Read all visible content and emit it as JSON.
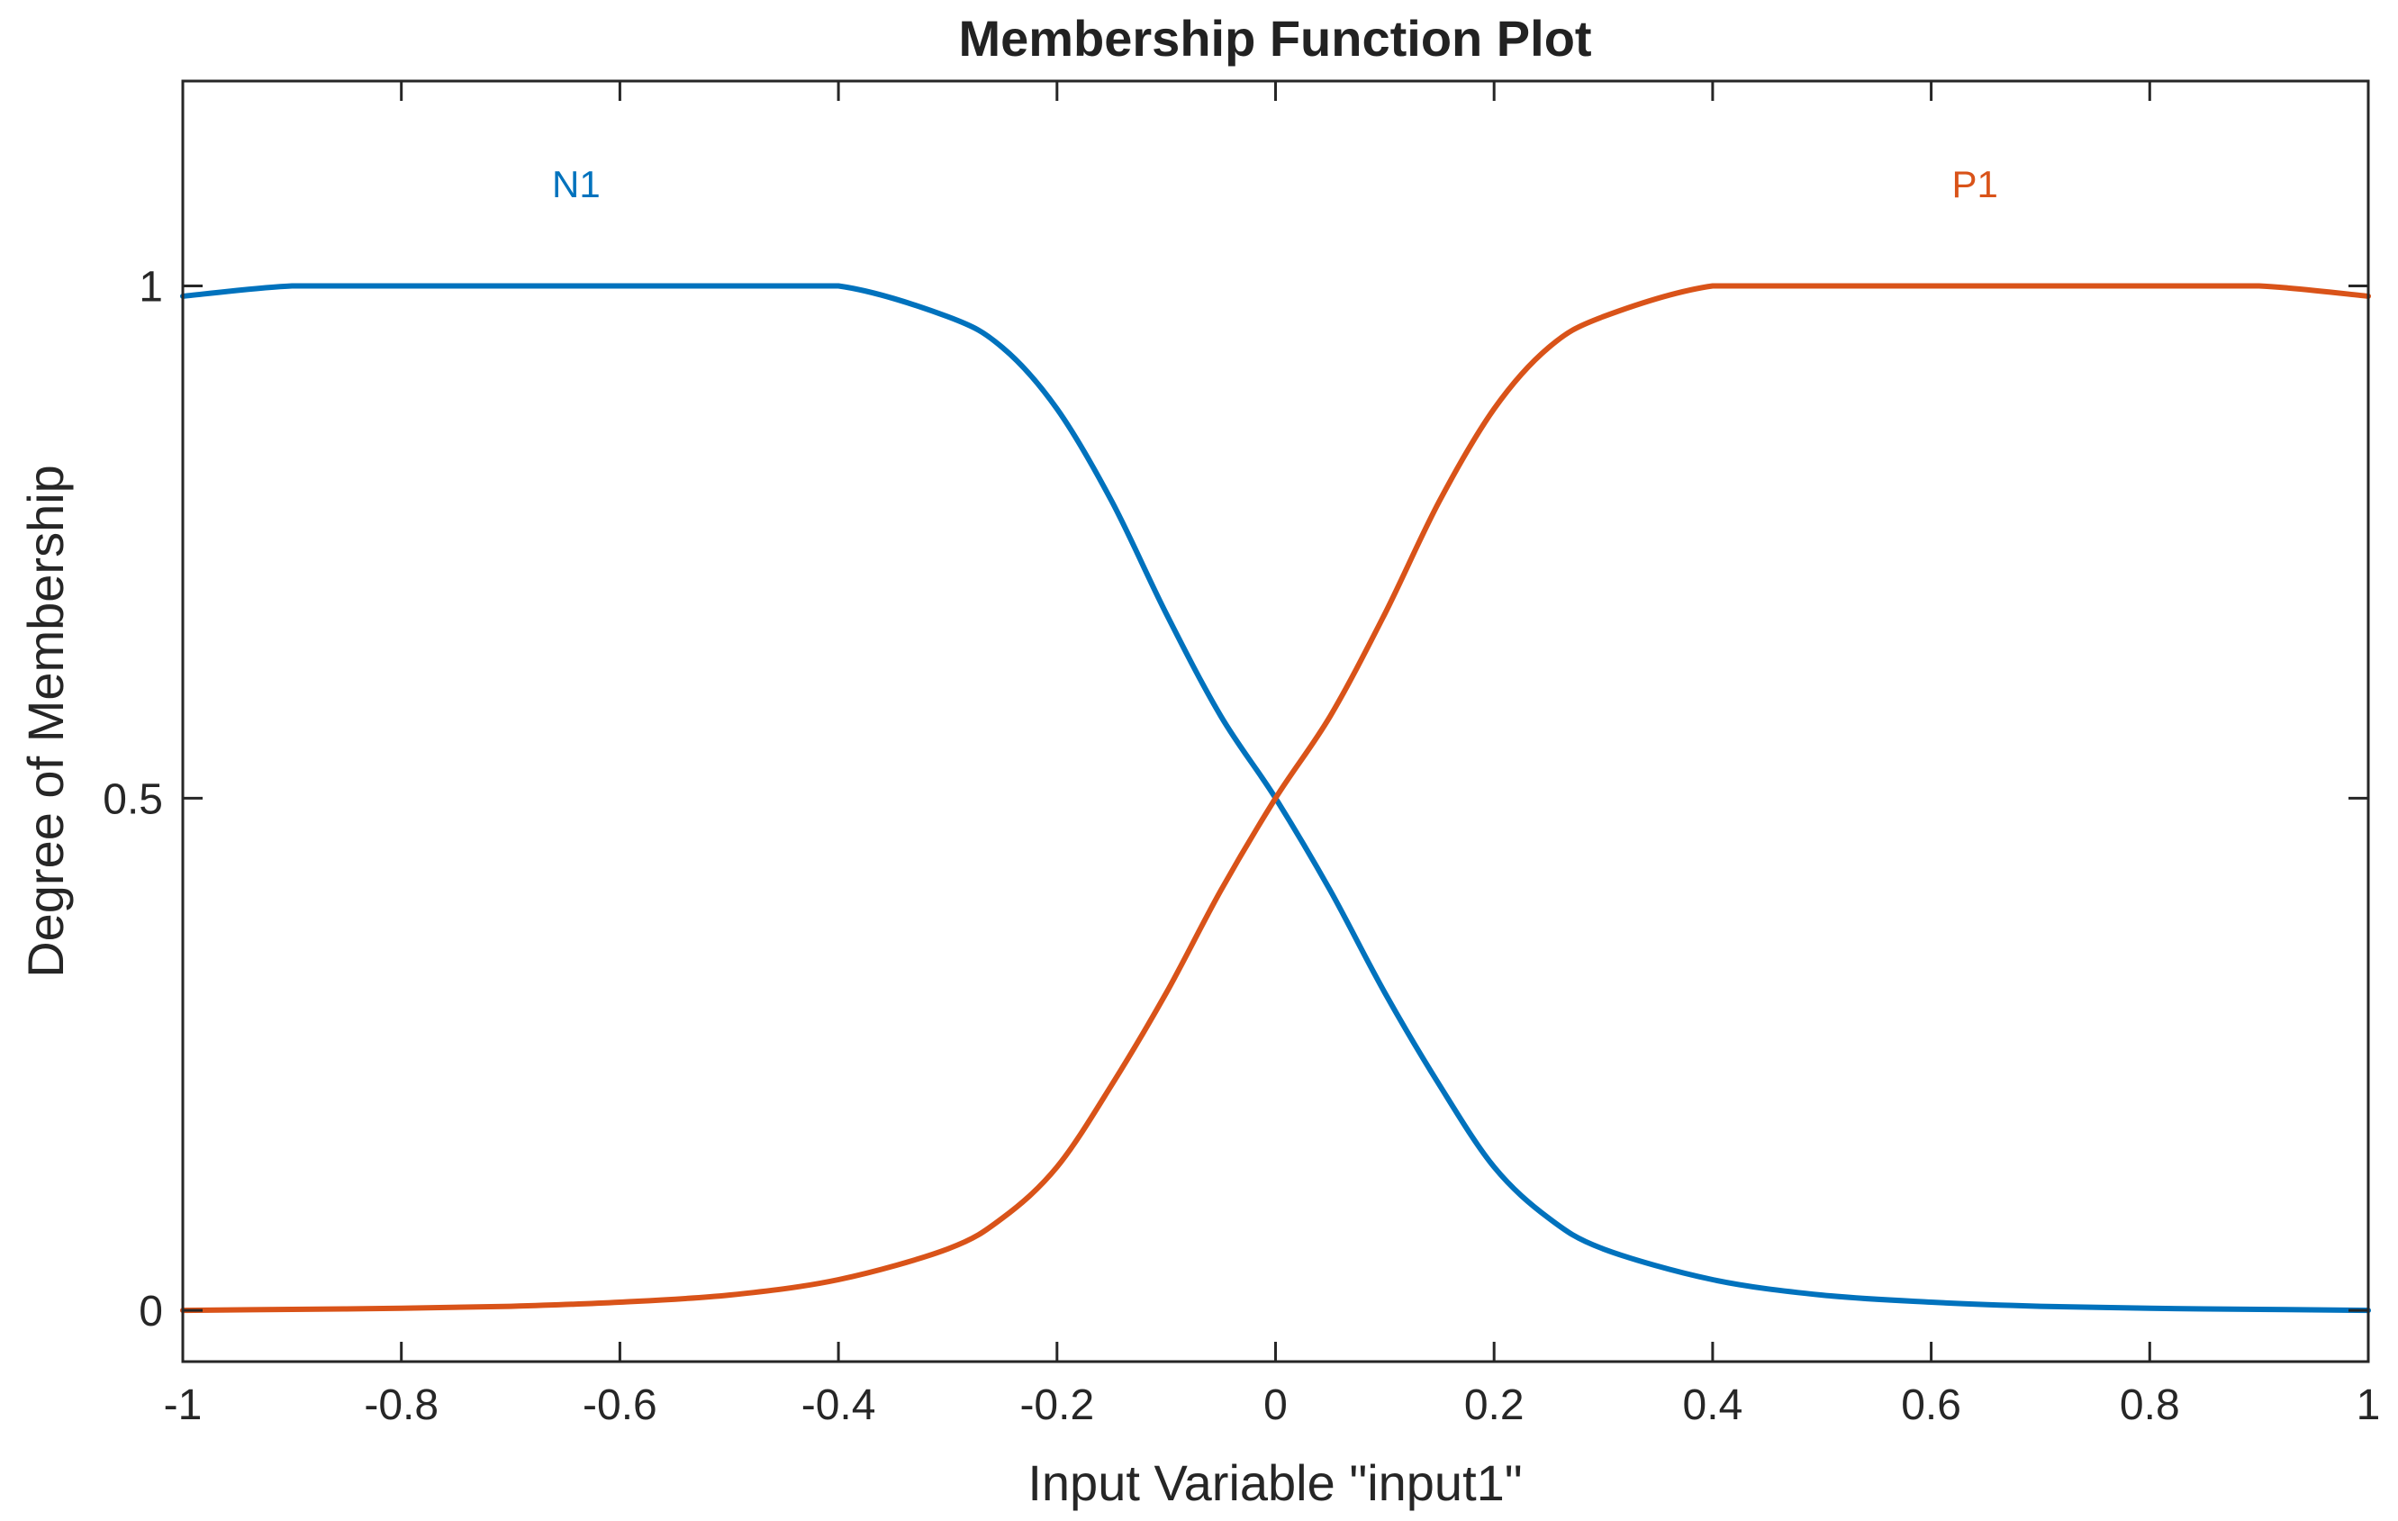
{
  "chart_data": {
    "type": "line",
    "title": "Membership Function Plot",
    "xlabel": "Input Variable \"input1\"",
    "ylabel": "Degree of Membership",
    "xlim": [
      -1,
      1
    ],
    "ylim": [
      -0.05,
      1.2
    ],
    "xticks": [
      -1,
      -0.8,
      -0.6,
      -0.4,
      -0.2,
      0,
      0.2,
      0.4,
      0.6,
      0.8,
      1
    ],
    "xtick_labels": [
      "-1",
      "-0.8",
      "-0.6",
      "-0.4",
      "-0.2",
      "0",
      "0.2",
      "0.4",
      "0.6",
      "0.8",
      "1"
    ],
    "yticks": [
      0,
      0.5,
      1
    ],
    "ytick_labels": [
      "0",
      "0.5",
      "1"
    ],
    "grid": false,
    "x": [
      -1,
      -0.9,
      -0.8,
      -0.7,
      -0.6,
      -0.5,
      -0.4,
      -0.3,
      -0.25,
      -0.2,
      -0.15,
      -0.1,
      -0.05,
      0,
      0.05,
      0.1,
      0.15,
      0.2,
      0.25,
      0.3,
      0.4,
      0.5,
      0.6,
      0.7,
      0.8,
      0.9,
      1
    ],
    "series": [
      {
        "name": "N1",
        "color": "#0072BD",
        "label_x": -0.64,
        "label_y": 1.1,
        "values": [
          0.99,
          1.0,
          1.0,
          1.0,
          1.0,
          1.0,
          1.0,
          0.97,
          0.94,
          0.88,
          0.79,
          0.68,
          0.58,
          0.5,
          0.41,
          0.31,
          0.22,
          0.14,
          0.09,
          0.06,
          0.03,
          0.015,
          0.008,
          0.004,
          0.002,
          0.001,
          0.0
        ]
      },
      {
        "name": "P1",
        "color": "#D95319",
        "label_x": 0.64,
        "label_y": 1.1,
        "values": [
          0.0,
          0.001,
          0.002,
          0.004,
          0.008,
          0.015,
          0.03,
          0.06,
          0.09,
          0.14,
          0.22,
          0.31,
          0.41,
          0.5,
          0.58,
          0.68,
          0.79,
          0.88,
          0.94,
          0.97,
          1.0,
          1.0,
          1.0,
          1.0,
          1.0,
          1.0,
          0.99
        ]
      }
    ]
  }
}
